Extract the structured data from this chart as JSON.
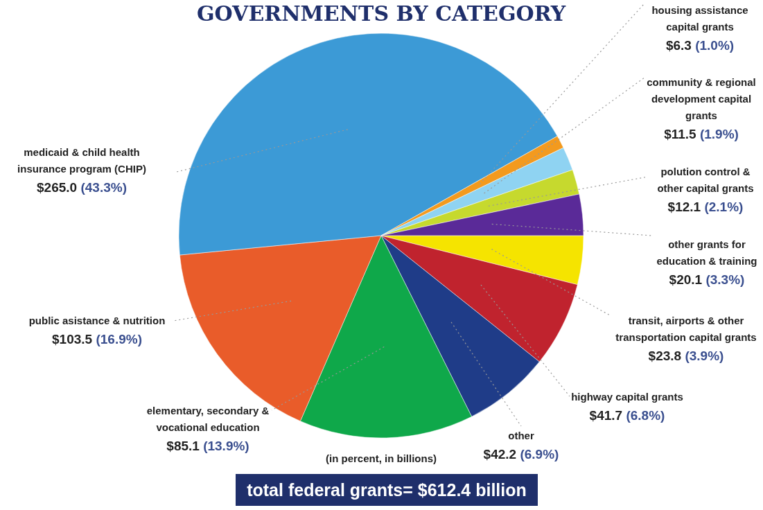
{
  "chart_data": {
    "type": "pie",
    "title": "GOVERNMENTS BY CATEGORY",
    "categories": [
      "transit, airports & other transportation capital grants",
      "highway capital grants",
      "other",
      "elementary, secondary & vocational education",
      "public asistance & nutrition",
      "medicaid & child health insurance program (CHIP)",
      "housing assistance capital grants",
      "community & regional development capital grants",
      "polution control & other capital grants",
      "other grants for education & training"
    ],
    "values": [
      23.8,
      41.7,
      42.2,
      85.1,
      103.5,
      265.0,
      6.3,
      11.5,
      12.1,
      20.1
    ],
    "value_labels": [
      "$23.8 (3.9%)",
      "$41.7 (6.8%)",
      "$42.2 (6.9%)",
      "$85.1 (13.9%)",
      "$103.5 (16.9%)",
      "$265.0 (43.3%)",
      "$6.3 (1.0%)",
      "$11.5 (1.9%)",
      "$12.1 (2.1%)",
      "$20.1 (3.3%)"
    ],
    "colors": [
      "#f5e400",
      "#c0232e",
      "#1f3c88",
      "#0fa84a",
      "#e95c2a",
      "#3c9ad6",
      "#f39a1e",
      "#8fd3f2",
      "#c6d92e",
      "#5a2a98"
    ],
    "annotations": [
      "(in percent, in billions)",
      "total federal grants= $612.4 billion"
    ]
  }
}
